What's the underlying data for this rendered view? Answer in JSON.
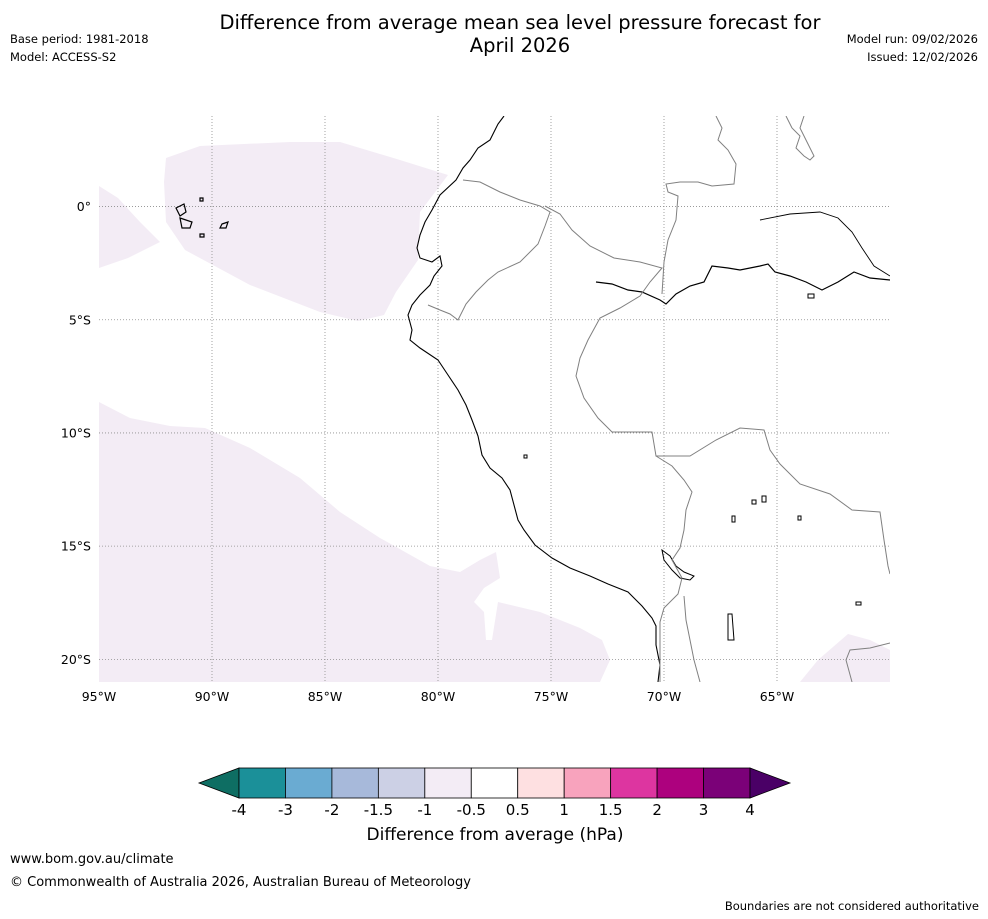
{
  "header": {
    "title_line1": "Difference from average mean sea level pressure forecast for",
    "title_line2": "April 2026",
    "base_period": "Base period: 1981-2018",
    "model": "Model: ACCESS-S2",
    "model_run": "Model run: 09/02/2026",
    "issued": "Issued: 12/02/2026"
  },
  "map": {
    "lon_range": [
      -95,
      -60
    ],
    "lat_range": [
      -21,
      4
    ],
    "lon_ticks": [
      {
        "value": -95,
        "label": "95°W"
      },
      {
        "value": -90,
        "label": "90°W"
      },
      {
        "value": -85,
        "label": "85°W"
      },
      {
        "value": -80,
        "label": "80°W"
      },
      {
        "value": -75,
        "label": "75°W"
      },
      {
        "value": -70,
        "label": "70°W"
      },
      {
        "value": -65,
        "label": "65°W"
      }
    ],
    "lat_ticks": [
      {
        "value": 0,
        "label": "0°"
      },
      {
        "value": -5,
        "label": "5°S"
      },
      {
        "value": -10,
        "label": "10°S"
      },
      {
        "value": -15,
        "label": "15°S"
      },
      {
        "value": -20,
        "label": "20°S"
      }
    ],
    "anomaly_fill_color": "#f3ecf5",
    "coast_color": "#000000",
    "border_color": "#808080"
  },
  "colorbar": {
    "label": "Difference from average (hPa)",
    "levels": [
      "-4",
      "-3",
      "-2",
      "-1.5",
      "-1",
      "-0.5",
      "0.5",
      "1",
      "1.5",
      "2",
      "3",
      "4"
    ],
    "colors": [
      "#1b9099",
      "#6aabd2",
      "#a7b9da",
      "#ccd0e5",
      "#f3ecf5",
      "#ffffff",
      "#fee0e1",
      "#f8a3bd",
      "#dd35a0",
      "#ad017e",
      "#7b0178"
    ],
    "low_extend_color": "#0e6e63",
    "high_extend_color": "#4a0066"
  },
  "footer": {
    "url": "www.bom.gov.au/climate",
    "copyright": "© Commonwealth of Australia 2026, Australian Bureau of Meteorology",
    "note": "Boundaries are not considered authoritative"
  }
}
